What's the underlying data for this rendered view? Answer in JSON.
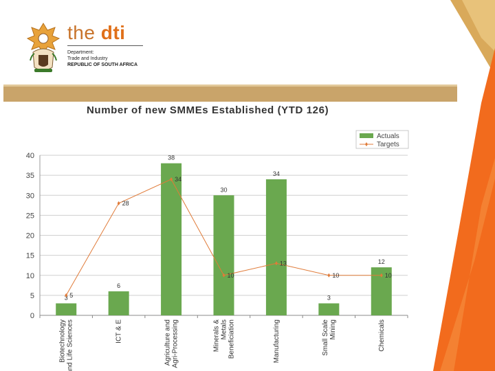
{
  "header": {
    "brand_the": "the",
    "brand_dti": "dti",
    "dept_line1": "Department:",
    "dept_line2": "Trade and Industry",
    "dept_line3": "REPUBLIC OF SOUTH AFRICA"
  },
  "colors": {
    "actuals": "#6aa84f",
    "targets": "#e07b39",
    "brand_orange": "#e0701a",
    "band_tan": "#c9a46a",
    "accent_orange": "#f26b1d"
  },
  "chart_data": {
    "type": "bar",
    "title": "Number of new SMMEs Established (YTD 126)",
    "categories": [
      [
        "Biotechnology",
        "and Life Sciences"
      ],
      [
        "ICT & E"
      ],
      [
        "Agriculture and",
        "Agri-Processing"
      ],
      [
        "Minerals &",
        "Metals",
        "Beneficiation"
      ],
      [
        "Manufacturing"
      ],
      [
        "Small Scale",
        "Mining"
      ],
      [
        "Chemicals"
      ]
    ],
    "series": [
      {
        "name": "Actuals",
        "type": "bar",
        "values": [
          3,
          6,
          38,
          30,
          34,
          3,
          12
        ],
        "labels": [
          "3",
          "6",
          "38",
          "30",
          "34",
          "3",
          "12"
        ]
      },
      {
        "name": "Targets",
        "type": "line",
        "values": [
          5,
          28,
          34,
          10,
          13,
          10,
          10
        ],
        "labels": [
          "5",
          "28",
          "34",
          "10",
          "13",
          "10",
          "10"
        ]
      }
    ],
    "ylim": [
      0,
      40
    ],
    "yticks": [
      "0",
      "5",
      "10",
      "15",
      "20",
      "25",
      "30",
      "35",
      "40"
    ],
    "grid": true,
    "legend": "top-right"
  }
}
